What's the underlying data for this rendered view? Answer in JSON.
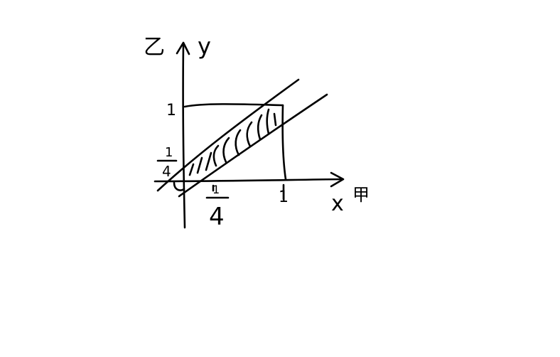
{
  "diagram": {
    "axis_labels": {
      "y_axis_prefix": "乙",
      "y_axis": "y",
      "x_axis": "x",
      "x_axis_suffix": "甲"
    },
    "tick_labels": {
      "y_one": "1",
      "y_quarter_num": "1",
      "y_quarter_den": "4",
      "x_quarter_num": "1",
      "x_quarter_den": "4",
      "x_one": "1",
      "origin": "O"
    }
  }
}
